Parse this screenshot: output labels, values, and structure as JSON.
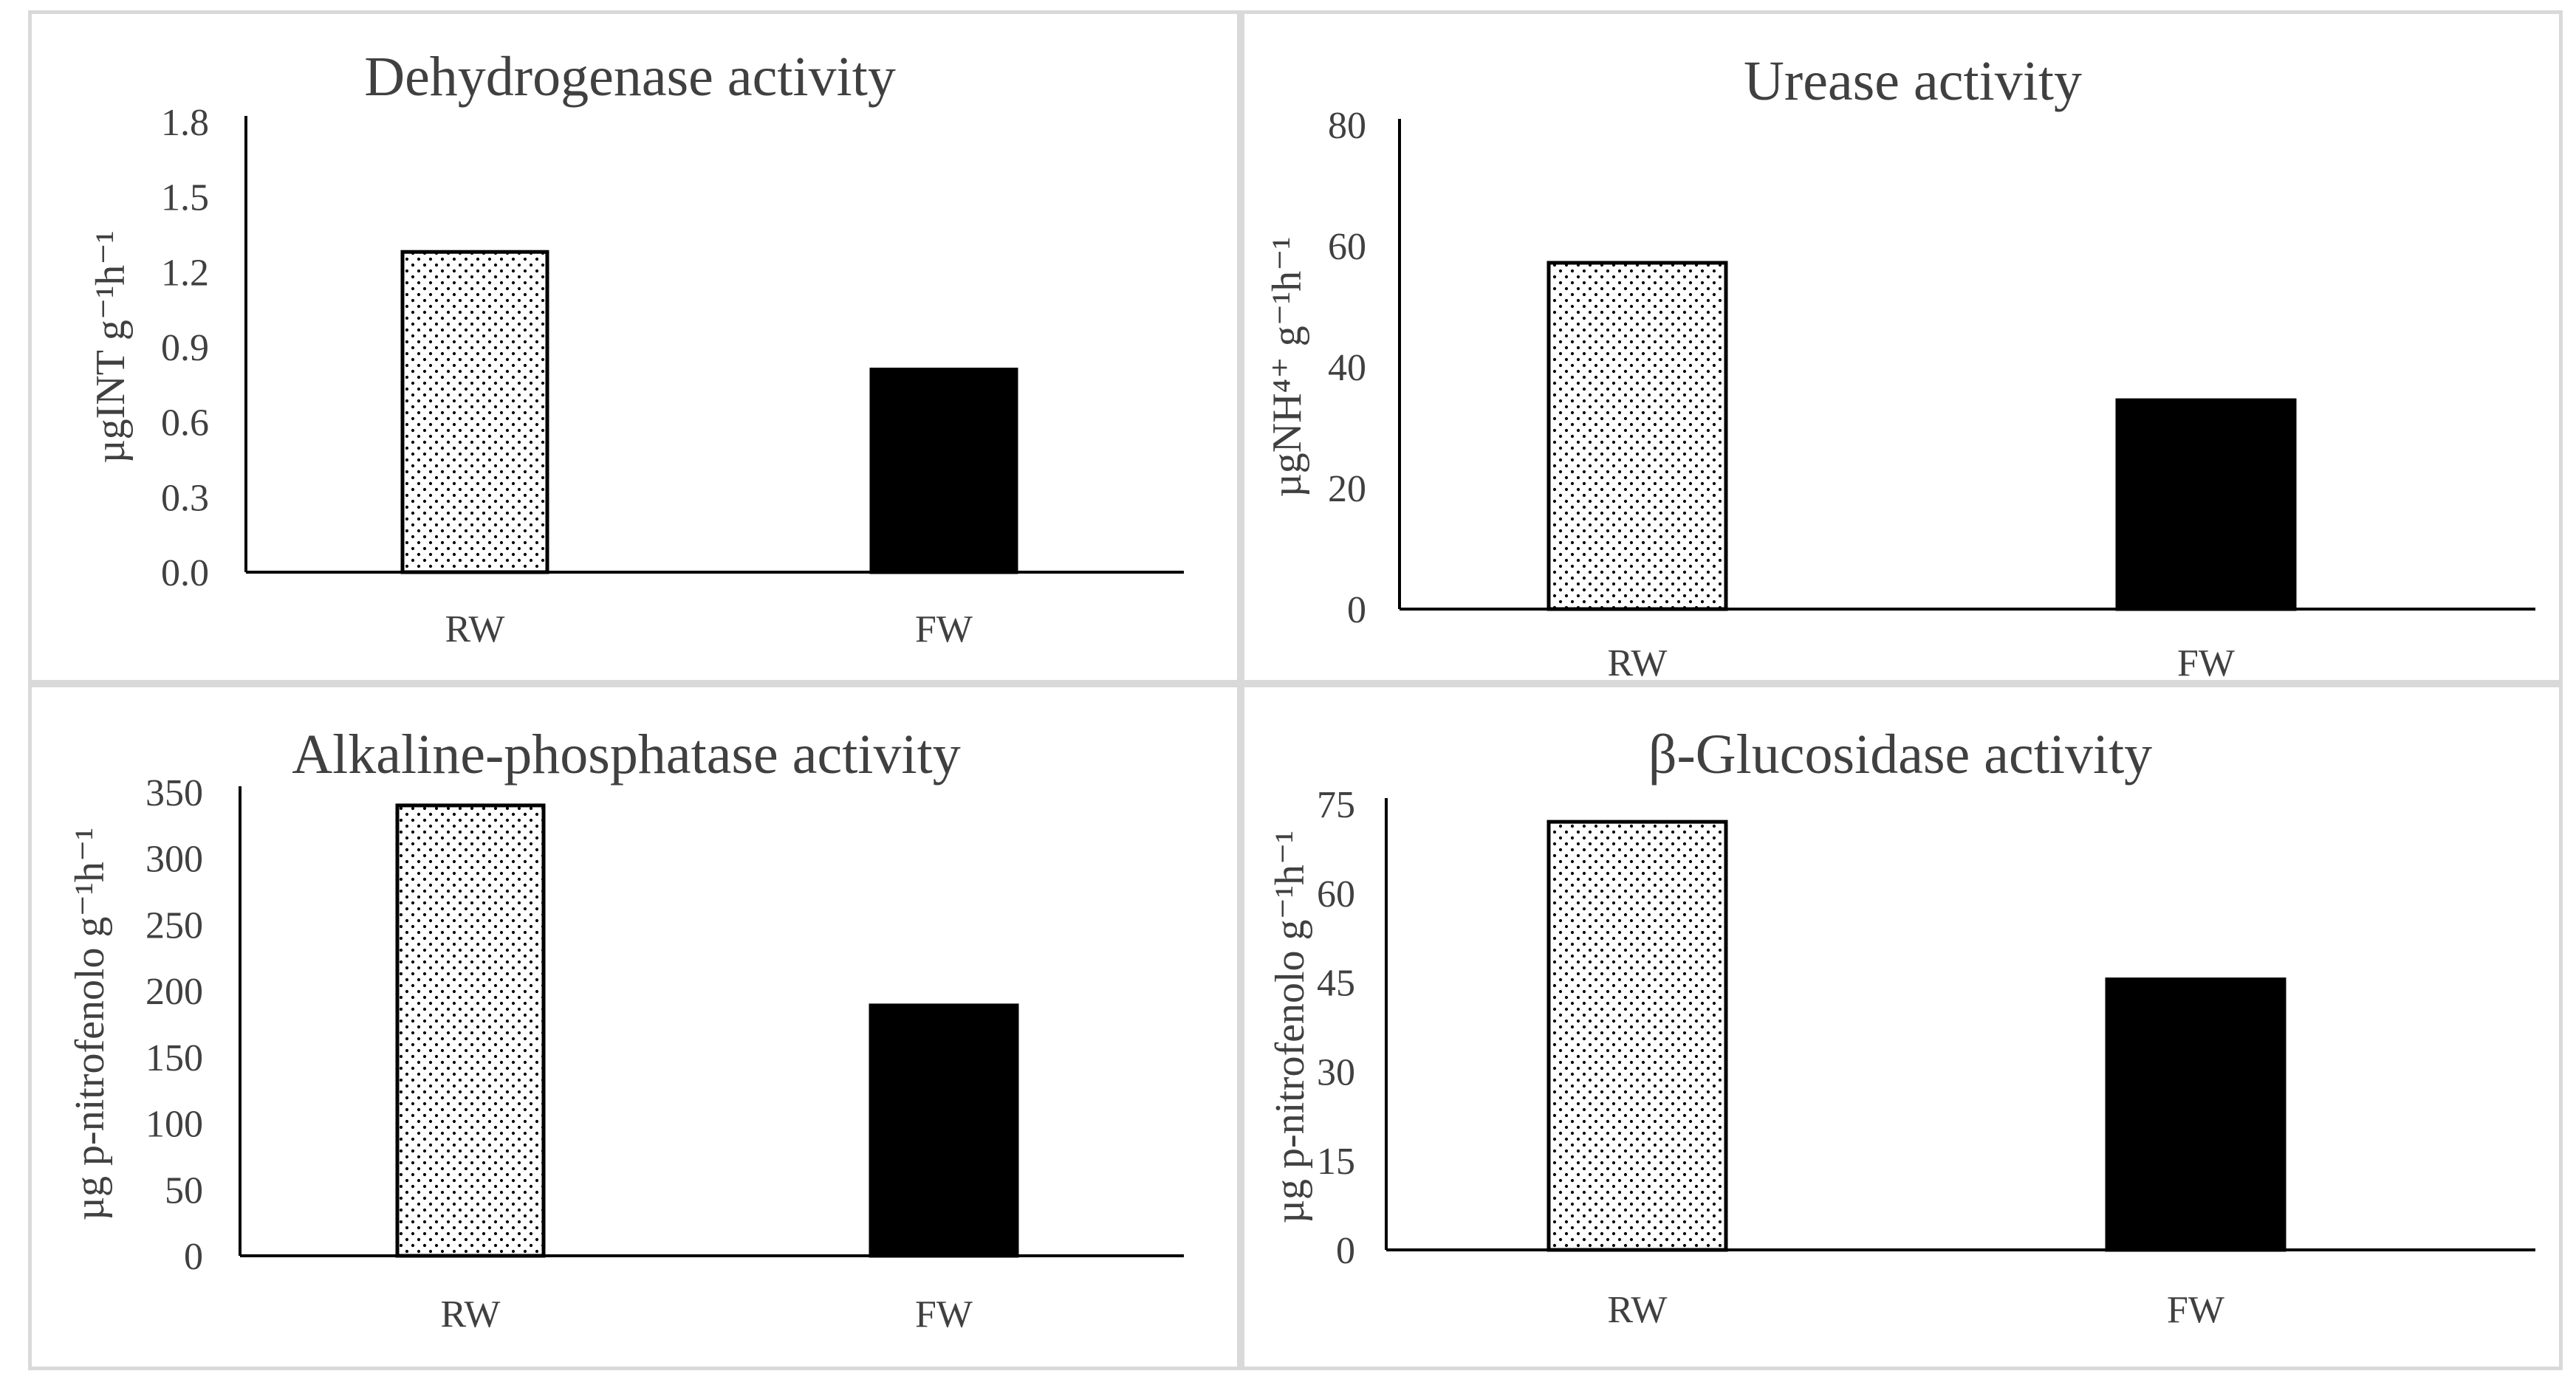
{
  "chart_data": [
    {
      "type": "bar",
      "title": "Dehydrogenase activity",
      "ylabel": "µgINT g⁻¹h⁻¹",
      "categories": [
        "RW",
        "FW"
      ],
      "values": [
        1.28,
        0.81
      ],
      "ylim": [
        0,
        1.8
      ],
      "yticks": [
        "0.0",
        "0.3",
        "0.6",
        "0.9",
        "1.2",
        "1.5",
        "1.8"
      ],
      "patterns": [
        "dotted",
        "solid"
      ]
    },
    {
      "type": "bar",
      "title": "Urease activity",
      "ylabel": "µgNH⁴⁺ g⁻¹h⁻¹",
      "categories": [
        "RW",
        "FW"
      ],
      "values": [
        57.2,
        34.5
      ],
      "ylim": [
        0,
        80
      ],
      "yticks": [
        "0",
        "20",
        "40",
        "60",
        "80"
      ],
      "patterns": [
        "dotted",
        "solid"
      ]
    },
    {
      "type": "bar",
      "title": "Alkaline-phosphatase activity",
      "ylabel": "µg p-nitrofenolo g⁻¹h⁻¹",
      "categories": [
        "RW",
        "FW"
      ],
      "values": [
        340,
        189
      ],
      "ylim": [
        0,
        350
      ],
      "yticks": [
        "0",
        "50",
        "100",
        "150",
        "200",
        "250",
        "300",
        "350"
      ],
      "patterns": [
        "dotted",
        "solid"
      ]
    },
    {
      "type": "bar",
      "title": "β-Glucosidase activity",
      "ylabel": "µg p-nitrofenolo g⁻¹h⁻¹",
      "categories": [
        "RW",
        "FW"
      ],
      "values": [
        72,
        45.5
      ],
      "ylim": [
        0,
        75
      ],
      "yticks": [
        "0",
        "15",
        "30",
        "45",
        "60",
        "75"
      ],
      "patterns": [
        "dotted",
        "solid"
      ]
    }
  ]
}
